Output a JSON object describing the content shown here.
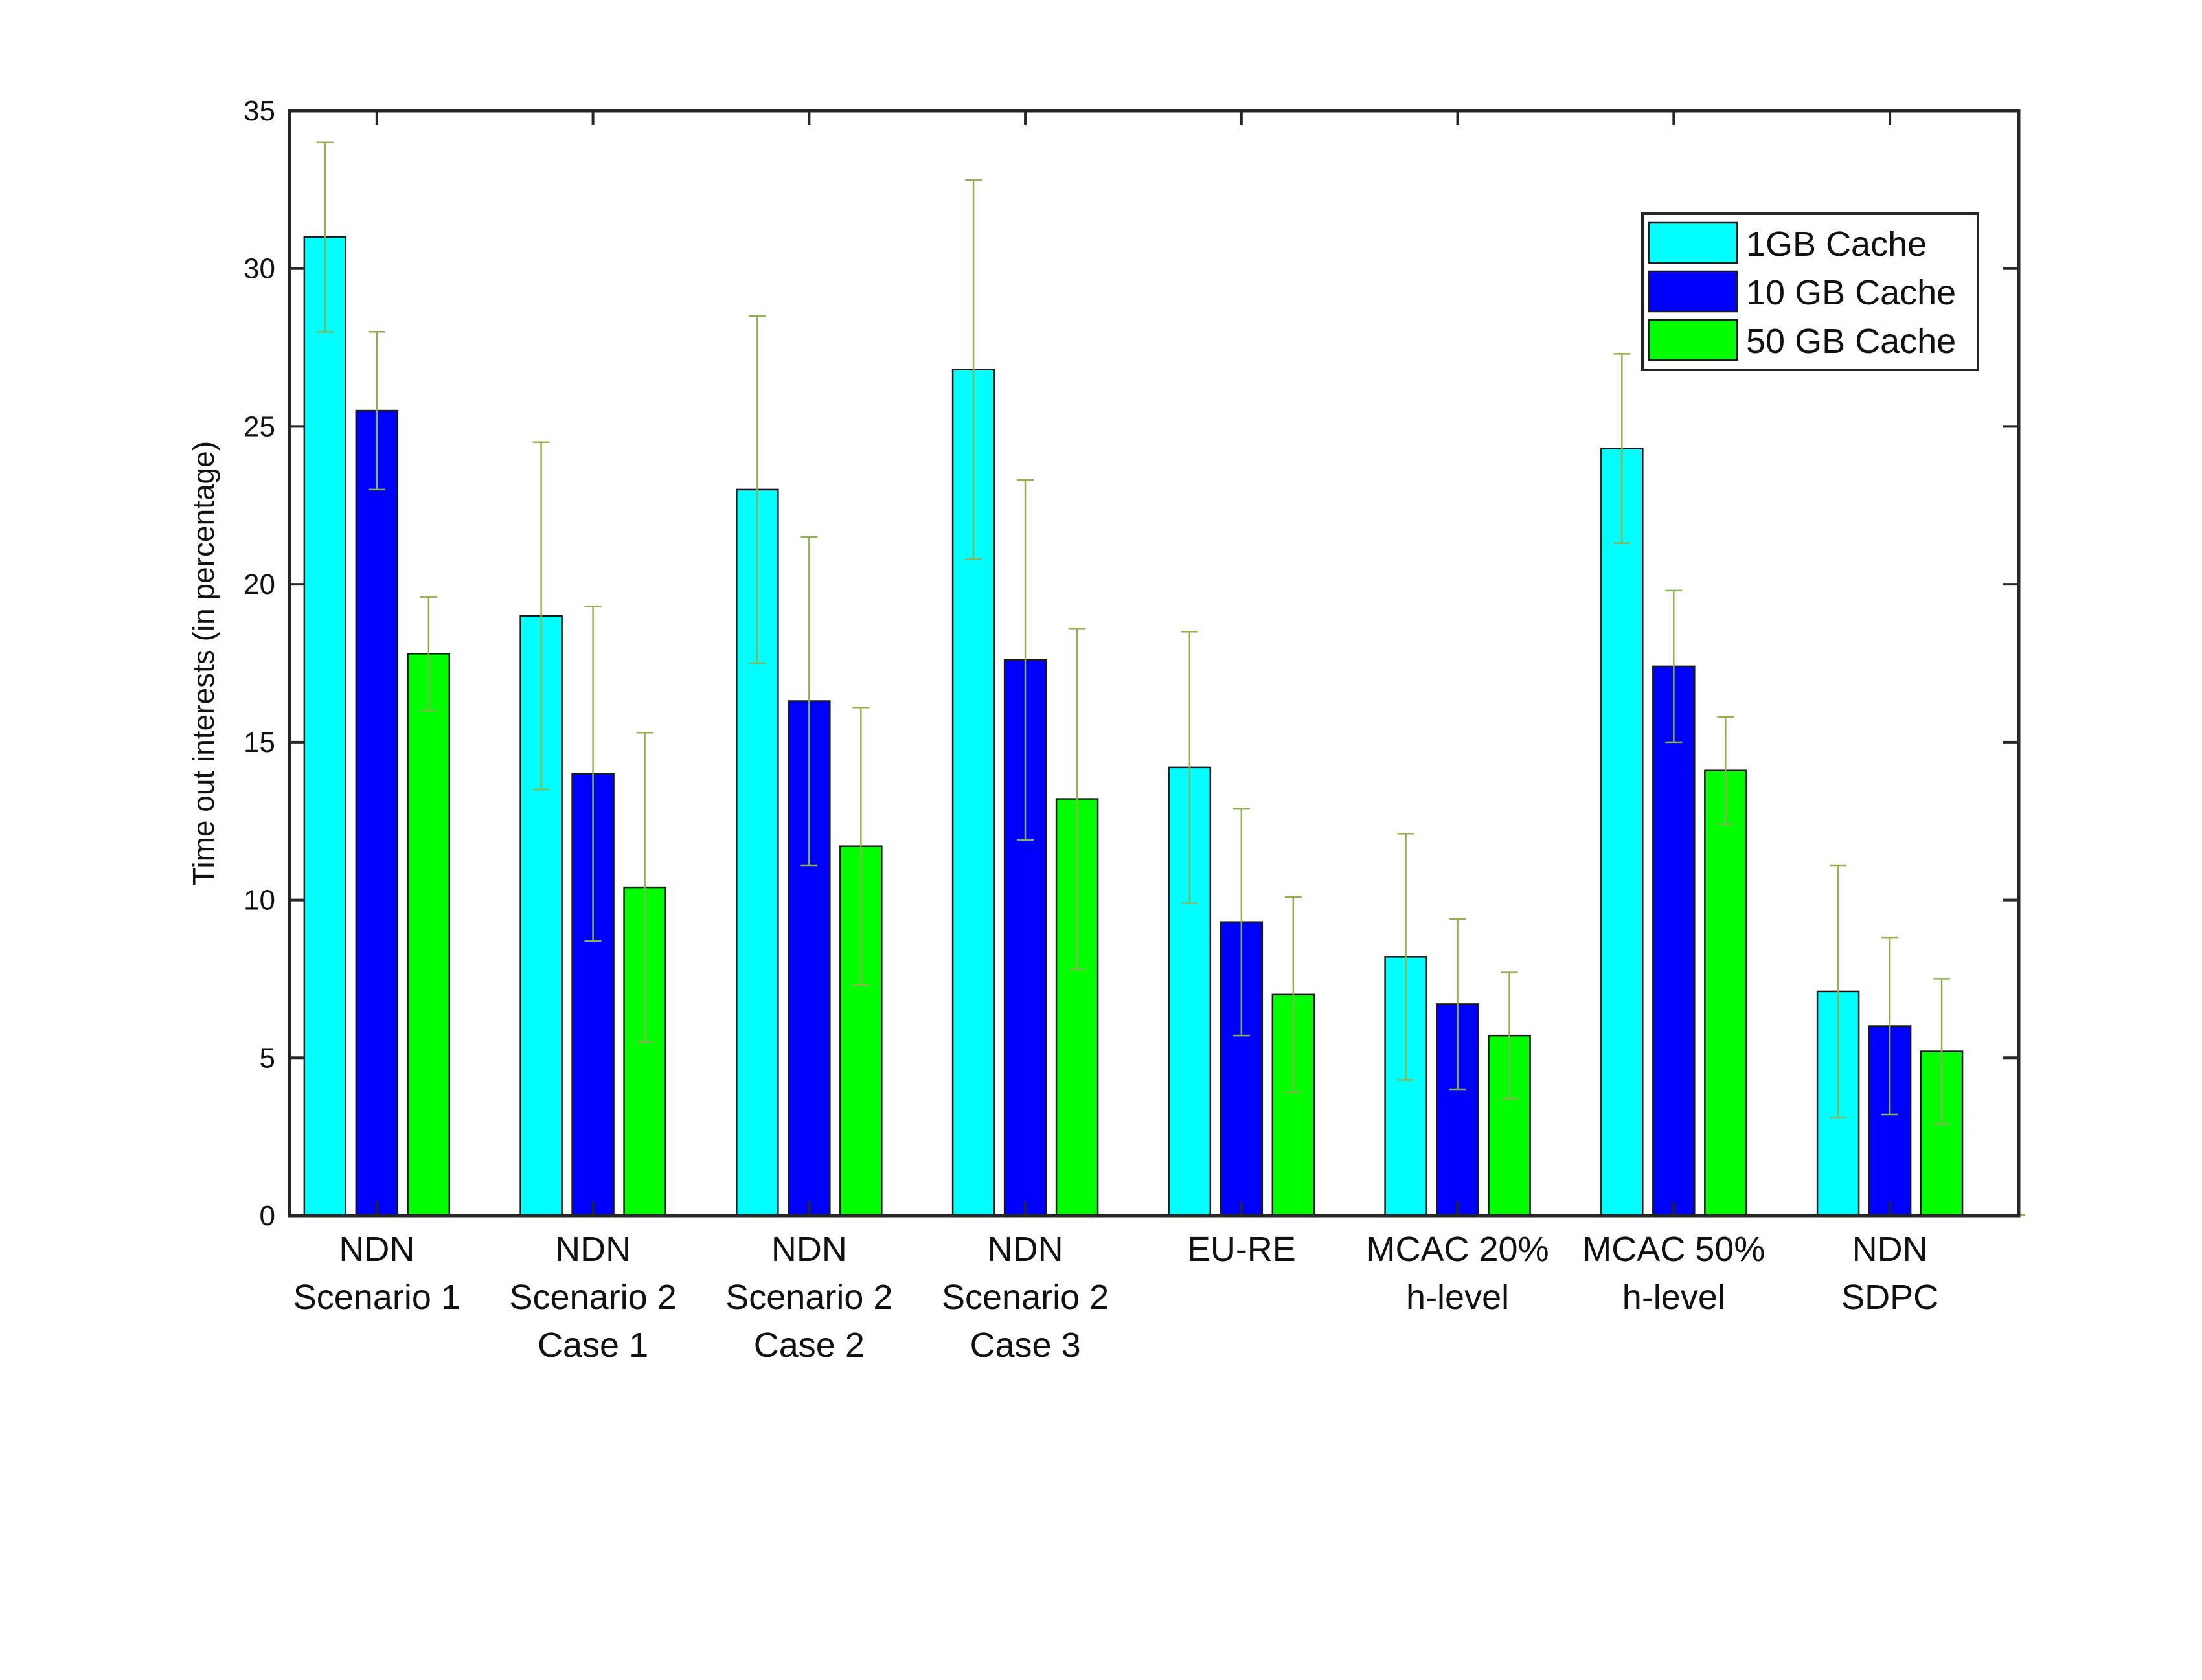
{
  "chart_data": {
    "type": "bar",
    "title": "",
    "xlabel": "",
    "ylabel": "Time out interests (in percentage)",
    "ylim": [
      0,
      35
    ],
    "yticks": [
      0,
      5,
      10,
      15,
      20,
      25,
      30,
      35
    ],
    "grid": false,
    "legend_position": "top-right",
    "categories": [
      [
        "NDN",
        "Scenario 1"
      ],
      [
        "NDN",
        "Scenario 2",
        "Case 1"
      ],
      [
        "NDN",
        "Scenario 2",
        "Case 2"
      ],
      [
        "NDN",
        "Scenario 2",
        "Case 3"
      ],
      [
        "EU-RE"
      ],
      [
        "MCAC 20%",
        "h-level"
      ],
      [
        "MCAC 50%",
        "h-level"
      ],
      [
        "NDN",
        "SDPC"
      ]
    ],
    "series": [
      {
        "name": "1GB Cache",
        "color": "#00FFFF",
        "values": [
          31.0,
          19.0,
          23.0,
          26.8,
          14.2,
          8.2,
          24.3,
          7.1
        ],
        "err_low": [
          28.0,
          13.5,
          17.5,
          20.8,
          9.9,
          4.3,
          21.3,
          3.1
        ],
        "err_high": [
          34.0,
          24.5,
          28.5,
          32.8,
          18.5,
          12.1,
          27.3,
          11.1
        ]
      },
      {
        "name": "10 GB Cache",
        "color": "#0000FF",
        "values": [
          25.5,
          14.0,
          16.3,
          17.6,
          9.3,
          6.7,
          17.4,
          6.0
        ],
        "err_low": [
          23.0,
          8.7,
          11.1,
          11.9,
          5.7,
          4.0,
          15.0,
          3.2
        ],
        "err_high": [
          28.0,
          19.3,
          21.5,
          23.3,
          12.9,
          9.4,
          19.8,
          8.8
        ]
      },
      {
        "name": "50 GB Cache",
        "color": "#00FF00",
        "values": [
          17.8,
          10.4,
          11.7,
          13.2,
          7.0,
          5.7,
          14.1,
          5.2
        ],
        "err_low": [
          16.0,
          5.5,
          7.3,
          7.8,
          3.9,
          3.7,
          12.4,
          2.9
        ],
        "err_high": [
          19.6,
          15.3,
          16.1,
          18.6,
          10.1,
          7.7,
          15.8,
          7.5
        ]
      }
    ],
    "errorbar_color": "#8DB24F"
  }
}
